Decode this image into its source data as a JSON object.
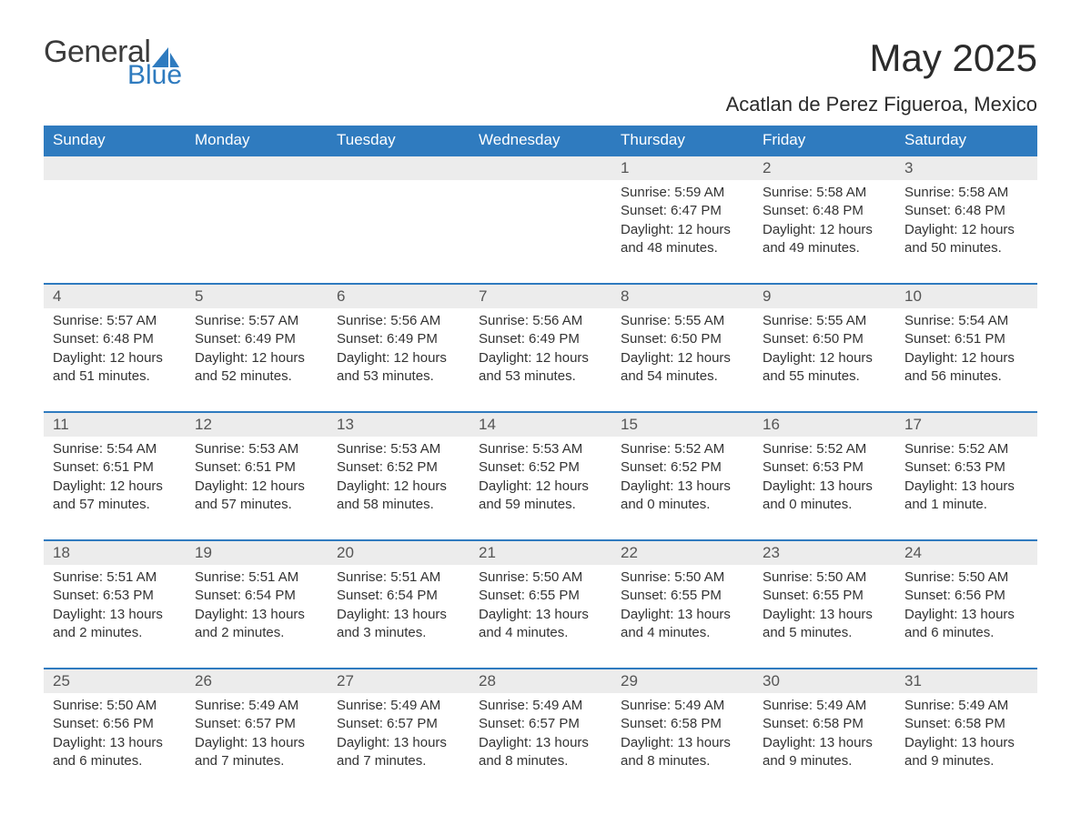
{
  "logo": {
    "word1": "General",
    "word2": "Blue",
    "shape_color": "#2f7bbf",
    "text_color_general": "#3b3b3b",
    "text_color_blue": "#2f7bbf"
  },
  "title": "May 2025",
  "location": "Acatlan de Perez Figueroa, Mexico",
  "colors": {
    "header_bg": "#2f7bbf",
    "header_text": "#ffffff",
    "daynum_bg": "#ececec",
    "daynum_text": "#555555",
    "body_text": "#333333",
    "page_bg": "#ffffff",
    "week_divider": "#2f7bbf"
  },
  "typography": {
    "title_fontsize": 42,
    "location_fontsize": 22,
    "weekday_fontsize": 17,
    "daynum_fontsize": 17,
    "cell_fontsize": 15,
    "font_family": "Arial"
  },
  "weekdays": [
    "Sunday",
    "Monday",
    "Tuesday",
    "Wednesday",
    "Thursday",
    "Friday",
    "Saturday"
  ],
  "weeks": [
    [
      null,
      null,
      null,
      null,
      {
        "n": "1",
        "sunrise": "5:59 AM",
        "sunset": "6:47 PM",
        "daylight": "12 hours and 48 minutes."
      },
      {
        "n": "2",
        "sunrise": "5:58 AM",
        "sunset": "6:48 PM",
        "daylight": "12 hours and 49 minutes."
      },
      {
        "n": "3",
        "sunrise": "5:58 AM",
        "sunset": "6:48 PM",
        "daylight": "12 hours and 50 minutes."
      }
    ],
    [
      {
        "n": "4",
        "sunrise": "5:57 AM",
        "sunset": "6:48 PM",
        "daylight": "12 hours and 51 minutes."
      },
      {
        "n": "5",
        "sunrise": "5:57 AM",
        "sunset": "6:49 PM",
        "daylight": "12 hours and 52 minutes."
      },
      {
        "n": "6",
        "sunrise": "5:56 AM",
        "sunset": "6:49 PM",
        "daylight": "12 hours and 53 minutes."
      },
      {
        "n": "7",
        "sunrise": "5:56 AM",
        "sunset": "6:49 PM",
        "daylight": "12 hours and 53 minutes."
      },
      {
        "n": "8",
        "sunrise": "5:55 AM",
        "sunset": "6:50 PM",
        "daylight": "12 hours and 54 minutes."
      },
      {
        "n": "9",
        "sunrise": "5:55 AM",
        "sunset": "6:50 PM",
        "daylight": "12 hours and 55 minutes."
      },
      {
        "n": "10",
        "sunrise": "5:54 AM",
        "sunset": "6:51 PM",
        "daylight": "12 hours and 56 minutes."
      }
    ],
    [
      {
        "n": "11",
        "sunrise": "5:54 AM",
        "sunset": "6:51 PM",
        "daylight": "12 hours and 57 minutes."
      },
      {
        "n": "12",
        "sunrise": "5:53 AM",
        "sunset": "6:51 PM",
        "daylight": "12 hours and 57 minutes."
      },
      {
        "n": "13",
        "sunrise": "5:53 AM",
        "sunset": "6:52 PM",
        "daylight": "12 hours and 58 minutes."
      },
      {
        "n": "14",
        "sunrise": "5:53 AM",
        "sunset": "6:52 PM",
        "daylight": "12 hours and 59 minutes."
      },
      {
        "n": "15",
        "sunrise": "5:52 AM",
        "sunset": "6:52 PM",
        "daylight": "13 hours and 0 minutes."
      },
      {
        "n": "16",
        "sunrise": "5:52 AM",
        "sunset": "6:53 PM",
        "daylight": "13 hours and 0 minutes."
      },
      {
        "n": "17",
        "sunrise": "5:52 AM",
        "sunset": "6:53 PM",
        "daylight": "13 hours and 1 minute."
      }
    ],
    [
      {
        "n": "18",
        "sunrise": "5:51 AM",
        "sunset": "6:53 PM",
        "daylight": "13 hours and 2 minutes."
      },
      {
        "n": "19",
        "sunrise": "5:51 AM",
        "sunset": "6:54 PM",
        "daylight": "13 hours and 2 minutes."
      },
      {
        "n": "20",
        "sunrise": "5:51 AM",
        "sunset": "6:54 PM",
        "daylight": "13 hours and 3 minutes."
      },
      {
        "n": "21",
        "sunrise": "5:50 AM",
        "sunset": "6:55 PM",
        "daylight": "13 hours and 4 minutes."
      },
      {
        "n": "22",
        "sunrise": "5:50 AM",
        "sunset": "6:55 PM",
        "daylight": "13 hours and 4 minutes."
      },
      {
        "n": "23",
        "sunrise": "5:50 AM",
        "sunset": "6:55 PM",
        "daylight": "13 hours and 5 minutes."
      },
      {
        "n": "24",
        "sunrise": "5:50 AM",
        "sunset": "6:56 PM",
        "daylight": "13 hours and 6 minutes."
      }
    ],
    [
      {
        "n": "25",
        "sunrise": "5:50 AM",
        "sunset": "6:56 PM",
        "daylight": "13 hours and 6 minutes."
      },
      {
        "n": "26",
        "sunrise": "5:49 AM",
        "sunset": "6:57 PM",
        "daylight": "13 hours and 7 minutes."
      },
      {
        "n": "27",
        "sunrise": "5:49 AM",
        "sunset": "6:57 PM",
        "daylight": "13 hours and 7 minutes."
      },
      {
        "n": "28",
        "sunrise": "5:49 AM",
        "sunset": "6:57 PM",
        "daylight": "13 hours and 8 minutes."
      },
      {
        "n": "29",
        "sunrise": "5:49 AM",
        "sunset": "6:58 PM",
        "daylight": "13 hours and 8 minutes."
      },
      {
        "n": "30",
        "sunrise": "5:49 AM",
        "sunset": "6:58 PM",
        "daylight": "13 hours and 9 minutes."
      },
      {
        "n": "31",
        "sunrise": "5:49 AM",
        "sunset": "6:58 PM",
        "daylight": "13 hours and 9 minutes."
      }
    ]
  ],
  "labels": {
    "sunrise": "Sunrise",
    "sunset": "Sunset",
    "daylight": "Daylight"
  }
}
